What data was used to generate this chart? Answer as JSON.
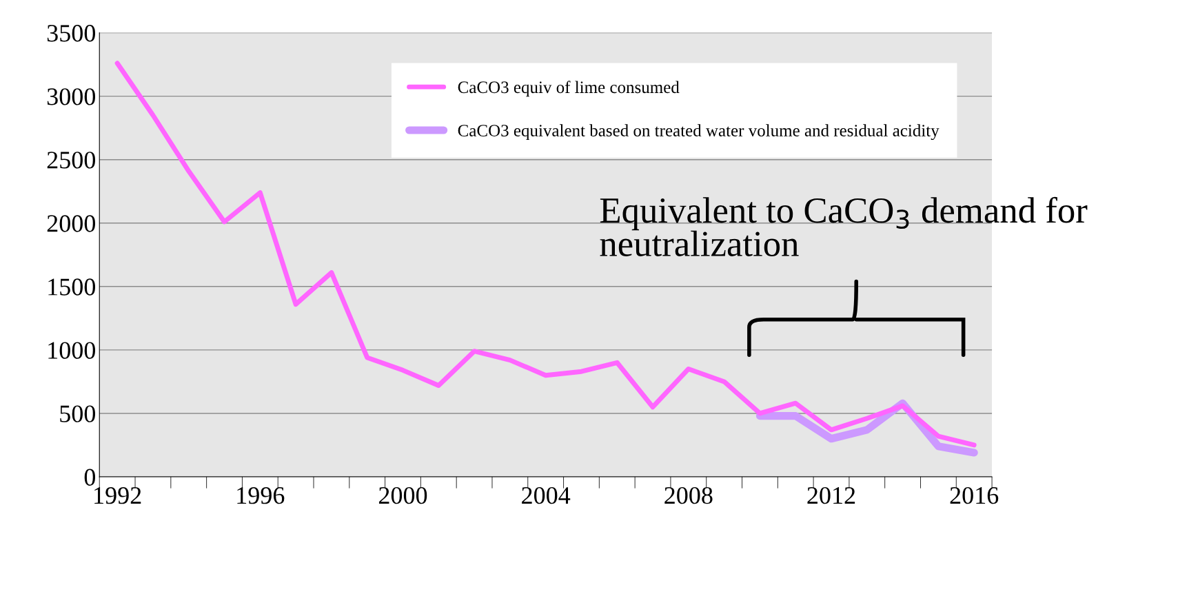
{
  "chart_data": {
    "type": "line",
    "categories": [
      "1992",
      null,
      null,
      null,
      "1996",
      null,
      null,
      null,
      "2000",
      null,
      null,
      null,
      "2004",
      null,
      null,
      null,
      "2008",
      null,
      null,
      null,
      "2012",
      null,
      null,
      null,
      "2016"
    ],
    "series": [
      {
        "name": "CaCO3 equiv of lime consumed",
        "color": "#ff66ff",
        "values": [
          3260,
          2850,
          2410,
          2010,
          2240,
          1360,
          1610,
          940,
          840,
          720,
          990,
          920,
          800,
          830,
          900,
          550,
          850,
          750,
          500,
          580,
          370,
          460,
          560,
          320,
          250
        ]
      },
      {
        "name": "CaCO3 equivalent based on treated water volume and residual acidity",
        "color": "#cc99ff",
        "values": [
          null,
          null,
          null,
          null,
          null,
          null,
          null,
          null,
          null,
          null,
          null,
          null,
          null,
          null,
          null,
          null,
          null,
          null,
          480,
          480,
          300,
          370,
          580,
          240,
          190
        ]
      }
    ],
    "ylim": [
      0,
      3500
    ],
    "yticks": [
      0,
      500,
      1000,
      1500,
      2000,
      2500,
      3000,
      3500
    ],
    "grid": "y",
    "legend": "top right",
    "annotations": [
      "Equivalent to CaCO$_{3}$ demand for neutralization"
    ]
  }
}
